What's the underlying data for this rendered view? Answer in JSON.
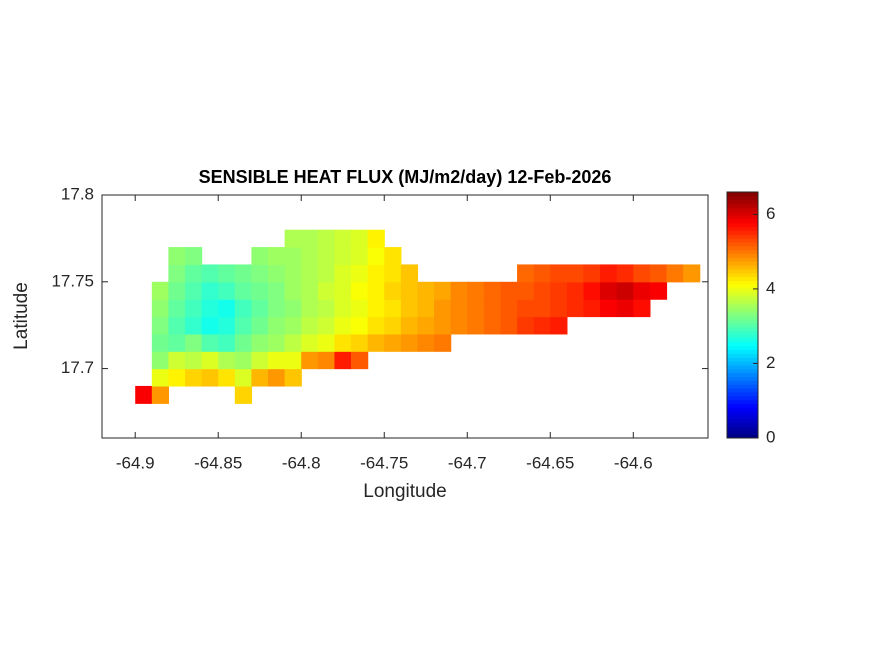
{
  "chart_data": {
    "type": "heatmap",
    "title": "SENSIBLE HEAT FLUX (MJ/m2/day) 12-Feb-2026",
    "xlabel": "Longitude",
    "ylabel": "Latitude",
    "xlim": [
      -64.92,
      -64.555
    ],
    "ylim": [
      17.66,
      17.8
    ],
    "xticks": [
      -64.9,
      -64.85,
      -64.8,
      -64.75,
      -64.7,
      -64.65,
      -64.6
    ],
    "yticks": [
      17.7,
      17.75,
      17.8
    ],
    "clim": [
      0,
      6.6
    ],
    "cticks": [
      0,
      2,
      4,
      6
    ],
    "colormap": "jet",
    "x": [
      -64.895,
      -64.885,
      -64.875,
      -64.865,
      -64.855,
      -64.845,
      -64.835,
      -64.825,
      -64.815,
      -64.805,
      -64.795,
      -64.785,
      -64.775,
      -64.765,
      -64.755,
      -64.745,
      -64.735,
      -64.725,
      -64.715,
      -64.705,
      -64.695,
      -64.685,
      -64.675,
      -64.665,
      -64.655,
      -64.645,
      -64.635,
      -64.625,
      -64.615,
      -64.605,
      -64.595,
      -64.585,
      -64.575,
      -64.565
    ],
    "y": [
      17.685,
      17.695,
      17.705,
      17.715,
      17.725,
      17.735,
      17.745,
      17.755,
      17.765,
      17.775
    ],
    "z": [
      [
        5.8,
        4.8,
        null,
        null,
        null,
        null,
        4.4,
        null,
        null,
        null,
        null,
        null,
        null,
        null,
        null,
        null,
        null,
        null,
        null,
        null,
        null,
        null,
        null,
        null,
        null,
        null,
        null,
        null,
        null,
        null,
        null,
        null,
        null,
        null
      ],
      [
        null,
        4.0,
        4.2,
        4.4,
        4.5,
        4.3,
        3.9,
        4.6,
        4.8,
        4.5,
        null,
        null,
        null,
        null,
        null,
        null,
        null,
        null,
        null,
        null,
        null,
        null,
        null,
        null,
        null,
        null,
        null,
        null,
        null,
        null,
        null,
        null,
        null,
        null
      ],
      [
        null,
        3.4,
        3.8,
        3.7,
        3.9,
        3.6,
        3.5,
        3.8,
        4.0,
        4.0,
        4.8,
        4.9,
        5.6,
        5.2,
        null,
        null,
        null,
        null,
        null,
        null,
        null,
        null,
        null,
        null,
        null,
        null,
        null,
        null,
        null,
        null,
        null,
        null,
        null,
        null
      ],
      [
        null,
        3.2,
        3.1,
        3.3,
        3.0,
        2.9,
        3.2,
        3.4,
        3.5,
        3.7,
        3.9,
        4.0,
        4.3,
        4.4,
        4.6,
        4.7,
        4.8,
        4.9,
        5.0,
        null,
        null,
        null,
        null,
        null,
        null,
        null,
        null,
        null,
        null,
        null,
        null,
        null,
        null,
        null
      ],
      [
        null,
        3.3,
        3.0,
        2.8,
        2.6,
        2.7,
        3.0,
        3.2,
        3.4,
        3.5,
        3.7,
        3.8,
        4.0,
        4.1,
        4.3,
        4.4,
        4.6,
        4.7,
        4.8,
        4.9,
        5.0,
        5.1,
        5.2,
        5.4,
        5.5,
        5.6,
        null,
        null,
        null,
        null,
        null,
        null,
        null,
        null
      ],
      [
        null,
        3.4,
        3.1,
        2.9,
        2.7,
        2.6,
        2.9,
        3.1,
        3.3,
        3.4,
        3.6,
        3.7,
        3.9,
        4.0,
        4.2,
        4.3,
        4.5,
        4.6,
        4.8,
        4.9,
        5.0,
        5.1,
        5.2,
        5.3,
        5.3,
        5.4,
        5.5,
        5.6,
        5.8,
        5.9,
        5.7,
        null,
        null,
        null
      ],
      [
        null,
        3.5,
        3.2,
        3.0,
        2.8,
        2.9,
        3.1,
        3.2,
        3.3,
        3.5,
        3.6,
        3.8,
        3.9,
        4.1,
        4.2,
        4.4,
        4.5,
        4.6,
        4.7,
        4.9,
        5.0,
        5.1,
        5.2,
        5.2,
        5.3,
        5.4,
        5.5,
        5.7,
        6.0,
        6.1,
        5.9,
        5.8,
        null,
        null
      ],
      [
        null,
        null,
        3.3,
        3.1,
        3.0,
        3.1,
        3.2,
        3.3,
        3.4,
        3.5,
        3.6,
        3.7,
        3.9,
        4.0,
        4.2,
        4.3,
        4.5,
        null,
        null,
        null,
        null,
        null,
        null,
        5.1,
        5.2,
        5.3,
        5.3,
        5.4,
        5.6,
        5.5,
        5.3,
        5.2,
        5.0,
        4.8
      ],
      [
        null,
        null,
        3.4,
        3.3,
        null,
        null,
        null,
        3.4,
        3.5,
        3.5,
        3.6,
        3.7,
        3.8,
        3.9,
        4.1,
        4.3,
        null,
        null,
        null,
        null,
        null,
        null,
        null,
        null,
        null,
        null,
        null,
        null,
        null,
        null,
        null,
        null,
        null,
        null
      ],
      [
        null,
        null,
        null,
        null,
        null,
        null,
        null,
        null,
        null,
        3.6,
        3.6,
        3.7,
        3.8,
        3.9,
        4.2,
        null,
        null,
        null,
        null,
        null,
        null,
        null,
        null,
        null,
        null,
        null,
        null,
        null,
        null,
        null,
        null,
        null,
        null,
        null
      ]
    ]
  }
}
